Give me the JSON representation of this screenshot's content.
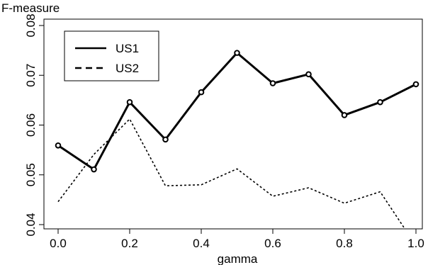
{
  "chart_data": {
    "type": "line",
    "title": "",
    "xlabel": "gamma",
    "ylabel": "F-measure",
    "xlim": [
      0.0,
      1.0
    ],
    "ylim": [
      0.04,
      0.08
    ],
    "x_ticks": [
      "0.0",
      "0.2",
      "0.4",
      "0.6",
      "0.8",
      "1.0"
    ],
    "y_ticks": [
      "0.04",
      "0.05",
      "0.06",
      "0.07",
      "0.08"
    ],
    "x": [
      0.0,
      0.1,
      0.2,
      0.3,
      0.4,
      0.5,
      0.6,
      0.7,
      0.8,
      0.9,
      1.0
    ],
    "series": [
      {
        "name": "US1",
        "style": "solid-with-markers",
        "color": "#000000",
        "values": [
          0.0559,
          0.0511,
          0.0646,
          0.0571,
          0.0666,
          0.0745,
          0.0684,
          0.0702,
          0.062,
          0.0646,
          0.0682
        ]
      },
      {
        "name": "US2",
        "style": "dashed",
        "color": "#000000",
        "values": [
          0.0446,
          0.0541,
          0.0612,
          0.0478,
          0.048,
          0.0512,
          0.0457,
          0.0474,
          0.0443,
          0.0466,
          0.0358
        ]
      }
    ],
    "grid": false,
    "legend_position": "top-left"
  }
}
